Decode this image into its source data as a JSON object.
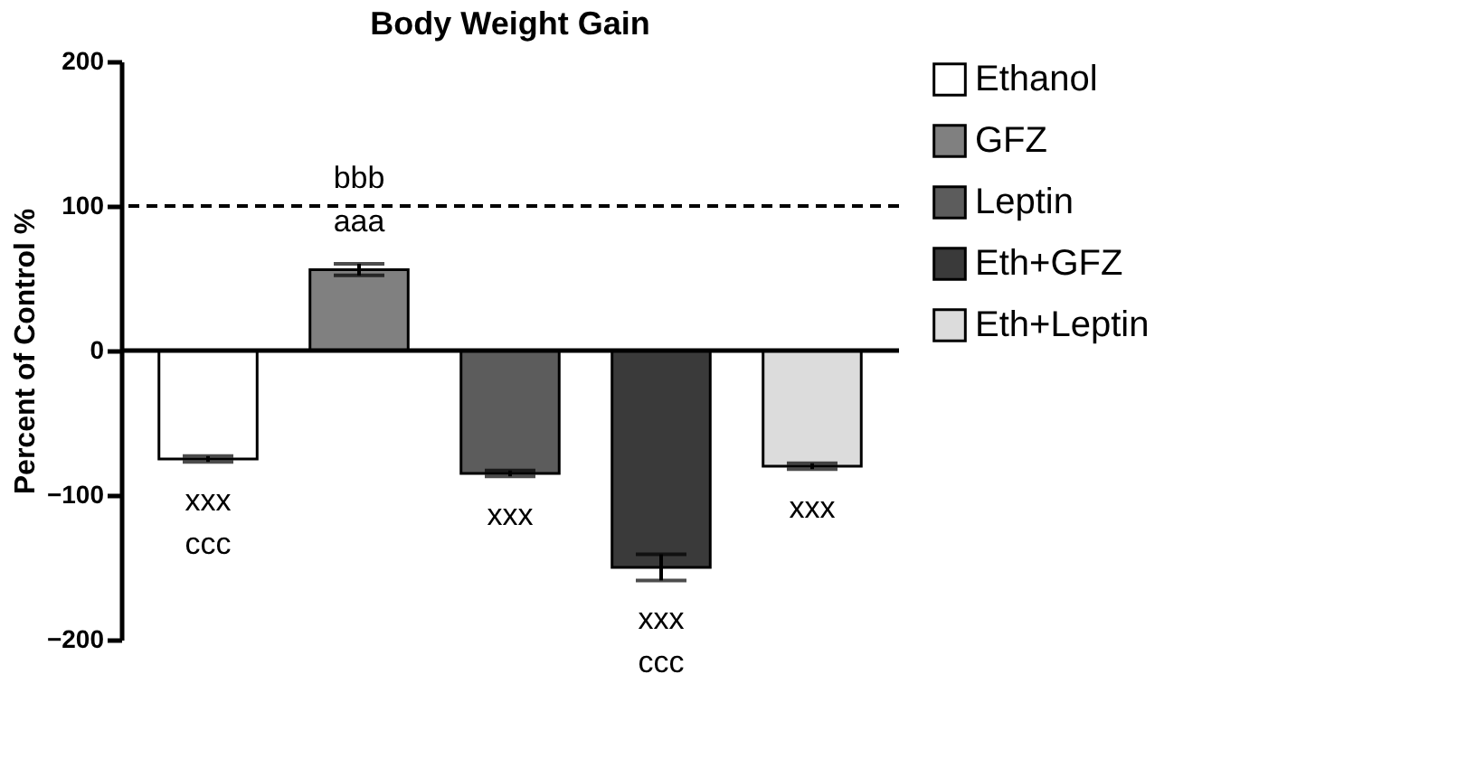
{
  "chart_data": {
    "type": "bar",
    "title": "Body Weight Gain",
    "ylabel": "Percent of Control %",
    "categories": [
      null,
      null,
      null,
      null,
      null
    ],
    "series": [
      {
        "name": "Ethanol",
        "color": "#ffffff",
        "values": [
          -75,
          null,
          null,
          null,
          null
        ],
        "errors": [
          2,
          null,
          null,
          null,
          null
        ]
      },
      {
        "name": "GFZ",
        "color": "#808080",
        "values": [
          null,
          56,
          null,
          null,
          null
        ],
        "errors": [
          null,
          4,
          null,
          null,
          null
        ]
      },
      {
        "name": "Leptin",
        "color": "#5c5c5c",
        "values": [
          null,
          null,
          -85,
          null,
          null
        ],
        "errors": [
          null,
          null,
          2,
          null,
          null
        ]
      },
      {
        "name": "Eth+GFZ",
        "color": "#3a3a3a",
        "values": [
          null,
          null,
          null,
          -150,
          null
        ],
        "errors": [
          null,
          null,
          null,
          9,
          null
        ]
      },
      {
        "name": "Eth+Leptin",
        "color": "#dcdcdc",
        "values": [
          null,
          null,
          null,
          null,
          -80
        ],
        "errors": [
          null,
          null,
          null,
          null,
          2
        ]
      }
    ],
    "annotations": [
      "xxx\nccc",
      "bbb\naaa",
      "xxx",
      "xxx\nccc",
      "xxx"
    ],
    "ylim": [
      -200,
      200
    ],
    "yticks": [
      -200,
      -100,
      0,
      100,
      200
    ],
    "ref_lines": [
      {
        "axis": "y",
        "value": 100,
        "line_style": "dashed"
      }
    ],
    "grid": false,
    "legend": "right"
  }
}
